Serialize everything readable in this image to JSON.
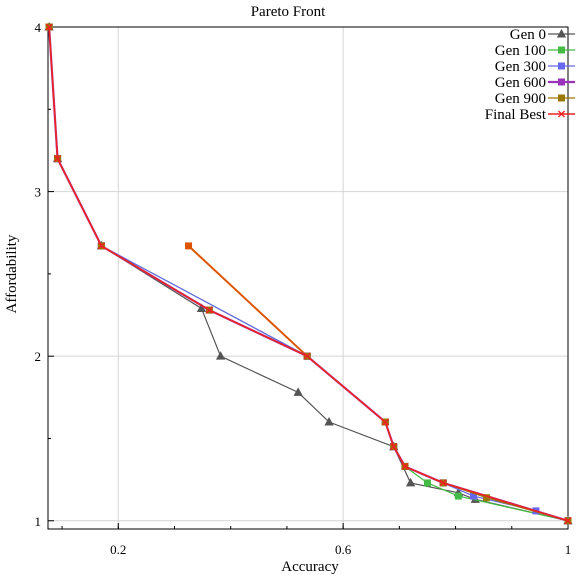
{
  "chart_data": {
    "type": "line",
    "title": "Pareto Front",
    "xlabel": "Accuracy",
    "ylabel": "Affordability",
    "xlim": [
      0.075,
      1.0
    ],
    "ylim": [
      0.95,
      4.0
    ],
    "xticks": [
      0.2,
      0.6,
      1
    ],
    "xtick_labels": [
      "0.2",
      "0.6",
      "1"
    ],
    "yticks": [
      1,
      2,
      3,
      4
    ],
    "ytick_labels": [
      "1",
      "2",
      "3",
      "4"
    ],
    "grid": true,
    "legend_position": "top-right",
    "series": [
      {
        "name": "Gen 0",
        "color": "#555555",
        "marker": "triangle",
        "line_width": 1.2,
        "x": [
          0.077,
          0.092,
          0.17,
          0.348,
          0.382,
          0.52,
          0.575,
          0.69,
          0.72,
          0.805,
          0.835,
          1.0
        ],
        "y": [
          4.0,
          3.2,
          2.67,
          2.29,
          2.0,
          1.78,
          1.6,
          1.45,
          1.23,
          1.17,
          1.13,
          1.0
        ]
      },
      {
        "name": "Gen 100",
        "color": "#44bb44",
        "marker": "square",
        "line_width": 1.2,
        "x": [
          0.077,
          0.092,
          0.17,
          0.536,
          0.675,
          0.69,
          0.71,
          0.75,
          0.805,
          1.0
        ],
        "y": [
          4.0,
          3.2,
          2.67,
          2.0,
          1.6,
          1.45,
          1.33,
          1.23,
          1.15,
          1.0
        ]
      },
      {
        "name": "Gen 300",
        "color": "#6666ee",
        "marker": "square",
        "line_width": 1.2,
        "x": [
          0.077,
          0.092,
          0.17,
          0.536,
          0.675,
          0.69,
          0.71,
          0.778,
          0.832,
          0.943,
          1.0
        ],
        "y": [
          4.0,
          3.2,
          2.67,
          2.0,
          1.6,
          1.45,
          1.33,
          1.23,
          1.15,
          1.06,
          1.0
        ]
      },
      {
        "name": "Gen 600",
        "color": "#9933bb",
        "marker": "square",
        "line_width": 2.2,
        "x": [
          0.077,
          0.092,
          0.17,
          0.362,
          0.536,
          0.675,
          0.69,
          0.71,
          0.778,
          1.0
        ],
        "y": [
          4.0,
          3.2,
          2.67,
          2.28,
          2.0,
          1.6,
          1.45,
          1.33,
          1.23,
          1.0
        ]
      },
      {
        "name": "Gen 900",
        "color": "#997700",
        "marker": "square",
        "line_width": 1.2,
        "x": [
          0.077,
          0.092,
          0.17,
          0.362,
          0.536,
          0.675,
          0.69,
          0.71,
          0.778,
          0.855,
          1.0
        ],
        "y": [
          4.0,
          3.2,
          2.67,
          2.28,
          2.0,
          1.6,
          1.45,
          1.33,
          1.23,
          1.14,
          1.0
        ]
      },
      {
        "name": "Final Best",
        "color": "#ee2222",
        "marker": "x",
        "line_width": 1.6,
        "x": [
          0.077,
          0.092,
          0.17,
          0.362,
          0.536,
          0.675,
          0.69,
          0.71,
          0.778,
          1.0
        ],
        "y": [
          4.0,
          3.2,
          2.67,
          2.28,
          2.0,
          1.6,
          1.45,
          1.33,
          1.23,
          1.0
        ]
      }
    ],
    "extra_segment": {
      "color": "#dd5500",
      "x": [
        0.325,
        0.536
      ],
      "y": [
        2.67,
        2.0
      ]
    }
  }
}
